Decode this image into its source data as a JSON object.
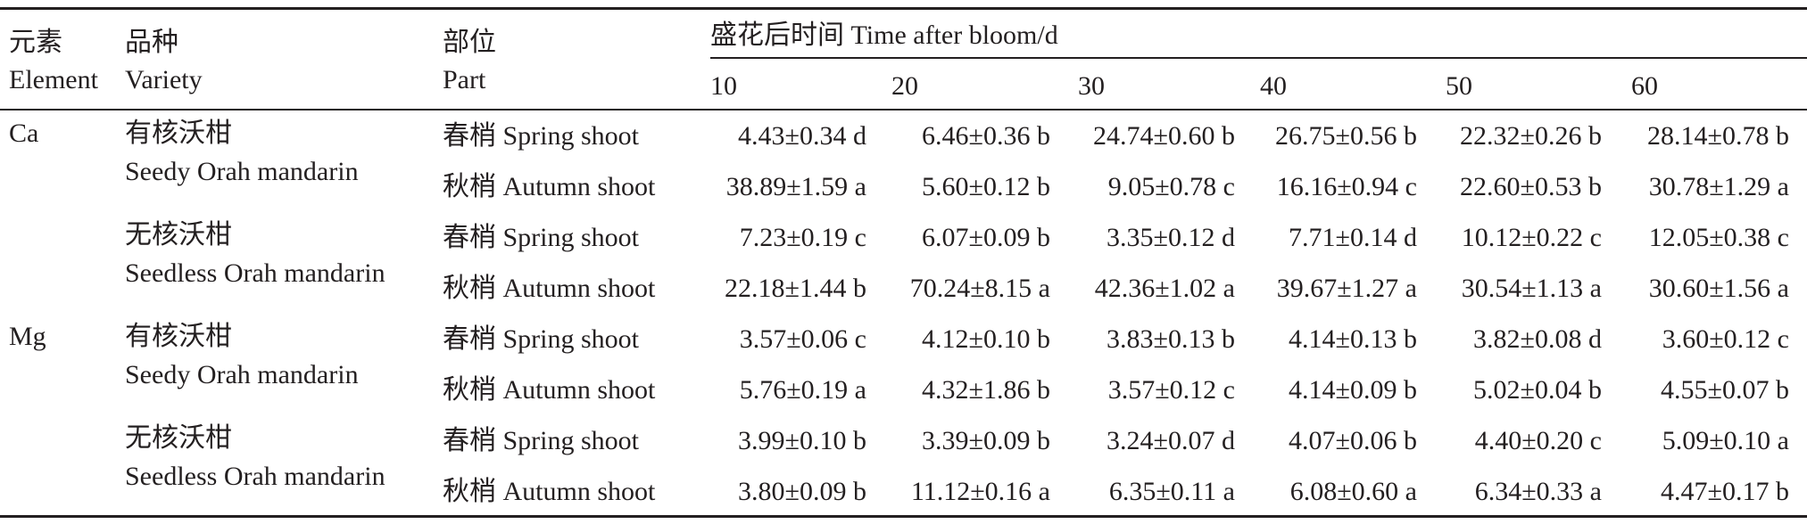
{
  "header": {
    "element_zh": "元素",
    "element_en": "Element",
    "variety_zh": "品种",
    "variety_en": "Variety",
    "part_zh": "部位",
    "part_en": "Part",
    "time_span": "盛花后时间 Time after bloom/d",
    "days": [
      "10",
      "20",
      "30",
      "40",
      "50",
      "60"
    ]
  },
  "rows": [
    {
      "element": "Ca",
      "variety_zh": "有核沃柑",
      "variety_en": "Seedy Orah mandarin",
      "parts": [
        {
          "name": "春梢 Spring shoot",
          "values": [
            "4.43±0.34 d",
            "6.46±0.36 b",
            "24.74±0.60 b",
            "26.75±0.56 b",
            "22.32±0.26 b",
            "28.14±0.78 b"
          ]
        },
        {
          "name": "秋梢 Autumn shoot",
          "values": [
            "38.89±1.59 a",
            "5.60±0.12 b",
            "9.05±0.78 c",
            "16.16±0.94 c",
            "22.60±0.53 b",
            "30.78±1.29 a"
          ]
        }
      ]
    },
    {
      "element": "",
      "variety_zh": "无核沃柑",
      "variety_en": "Seedless Orah mandarin",
      "parts": [
        {
          "name": "春梢 Spring shoot",
          "values": [
            "7.23±0.19 c",
            "6.07±0.09 b",
            "3.35±0.12 d",
            "7.71±0.14 d",
            "10.12±0.22 c",
            "12.05±0.38 c"
          ]
        },
        {
          "name": "秋梢 Autumn shoot",
          "values": [
            "22.18±1.44 b",
            "70.24±8.15 a",
            "42.36±1.02 a",
            "39.67±1.27 a",
            "30.54±1.13 a",
            "30.60±1.56 a"
          ]
        }
      ]
    },
    {
      "element": "Mg",
      "variety_zh": "有核沃柑",
      "variety_en": "Seedy Orah mandarin",
      "parts": [
        {
          "name": "春梢 Spring shoot",
          "values": [
            "3.57±0.06 c",
            "4.12±0.10 b",
            "3.83±0.13 b",
            "4.14±0.13 b",
            "3.82±0.08 d",
            "3.60±0.12 c"
          ]
        },
        {
          "name": "秋梢 Autumn shoot",
          "values": [
            "5.76±0.19 a",
            "4.32±1.86 b",
            "3.57±0.12 c",
            "4.14±0.09 b",
            "5.02±0.04 b",
            "4.55±0.07 b"
          ]
        }
      ]
    },
    {
      "element": "",
      "variety_zh": "无核沃柑",
      "variety_en": "Seedless Orah mandarin",
      "parts": [
        {
          "name": "春梢 Spring shoot",
          "values": [
            "3.99±0.10 b",
            "3.39±0.09 b",
            "3.24±0.07 d",
            "4.07±0.06 b",
            "4.40±0.20 c",
            "5.09±0.10 a"
          ]
        },
        {
          "name": "秋梢 Autumn shoot",
          "values": [
            "3.80±0.09 b",
            "11.12±0.16 a",
            "6.35±0.11 a",
            "6.08±0.60 a",
            "6.34±0.33 a",
            "4.47±0.17 b"
          ]
        }
      ]
    }
  ]
}
